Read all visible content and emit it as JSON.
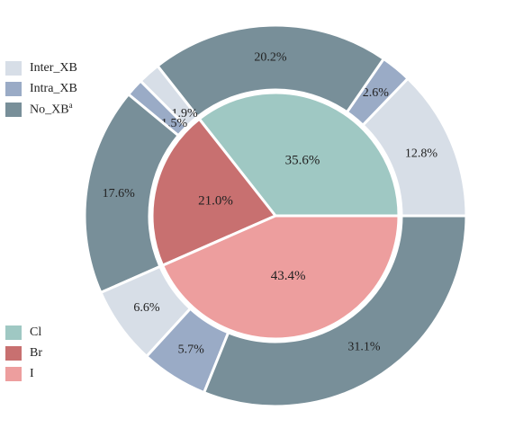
{
  "chart_data": {
    "type": "nested-pie",
    "title": "",
    "outer_ring": {
      "legend": [
        {
          "key": "Inter_XB",
          "label": "Inter_XB",
          "color": "#d7dee7"
        },
        {
          "key": "Intra_XB",
          "label": "Intra_XB",
          "color": "#9aabc6"
        },
        {
          "key": "No_XB",
          "label": "No_XB",
          "superscript": "a",
          "color": "#788f99"
        }
      ],
      "slices": [
        {
          "category": "Inter_XB",
          "group": "Cl",
          "value": 12.8,
          "label": "12.8%"
        },
        {
          "category": "Intra_XB",
          "group": "Cl",
          "value": 2.6,
          "label": "2.6%"
        },
        {
          "category": "No_XB",
          "group": "Cl",
          "value": 20.2,
          "label": "20.2%"
        },
        {
          "category": "Inter_XB",
          "group": "Br",
          "value": 1.9,
          "label": "1.9%"
        },
        {
          "category": "Intra_XB",
          "group": "Br",
          "value": 1.5,
          "label": "1.5%"
        },
        {
          "category": "No_XB",
          "group": "Br",
          "value": 17.6,
          "label": "17.6%"
        },
        {
          "category": "Inter_XB",
          "group": "I",
          "value": 6.6,
          "label": "6.6%"
        },
        {
          "category": "Intra_XB",
          "group": "I",
          "value": 5.7,
          "label": "5.7%"
        },
        {
          "category": "No_XB",
          "group": "I",
          "value": 31.1,
          "label": "31.1%"
        }
      ]
    },
    "inner_pie": {
      "legend": [
        {
          "key": "Cl",
          "label": "Cl",
          "color": "#9fc8c3"
        },
        {
          "key": "Br",
          "label": "Br",
          "color": "#c87070"
        },
        {
          "key": "I",
          "label": "I",
          "color": "#ed9e9e"
        }
      ],
      "slices": [
        {
          "category": "Cl",
          "value": 35.6,
          "label": "35.6%"
        },
        {
          "category": "Br",
          "value": 21.0,
          "label": "21.0%"
        },
        {
          "category": "I",
          "value": 43.4,
          "label": "43.4%"
        }
      ]
    },
    "start_angle_deg": 0,
    "direction": "counterclockwise",
    "legend_placement": [
      "top-left",
      "bottom-left"
    ]
  }
}
